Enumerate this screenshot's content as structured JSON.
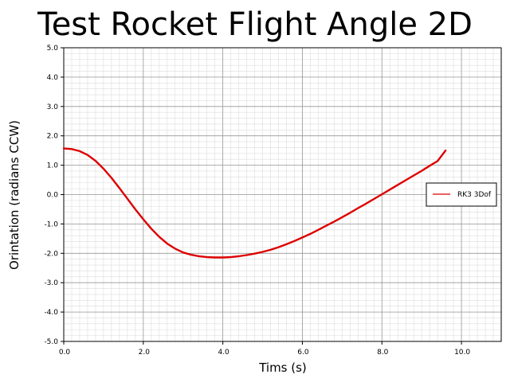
{
  "chart_data": {
    "type": "line",
    "title": "Test Rocket Flight Angle 2D",
    "xlabel": "Tims (s)",
    "ylabel": "Orintation (radians CCW)",
    "xlim": [
      0,
      11
    ],
    "ylim": [
      -5,
      5
    ],
    "x_ticks": [
      0.0,
      2.0,
      4.0,
      6.0,
      8.0,
      10.0
    ],
    "x_tick_labels": [
      "0.0",
      "2.0",
      "4.0",
      "6.0",
      "8.0",
      "10.0"
    ],
    "y_ticks": [
      5.0,
      4.0,
      3.0,
      2.0,
      1.0,
      0.0,
      -1.0,
      -2.0,
      -3.0,
      -4.0,
      -5.0
    ],
    "y_tick_labels": [
      "5.0",
      "4.0",
      "3.0",
      "2.0",
      "1.0",
      "0.0",
      "-1.0",
      "-2.0",
      "-3.0",
      "-4.0",
      "-5.0"
    ],
    "grid": true,
    "legend_position": "right",
    "series": [
      {
        "name": "RK3 3Dof",
        "color": "#dd0000",
        "x": [
          0.0,
          0.2,
          0.4,
          0.6,
          0.8,
          1.0,
          1.2,
          1.4,
          1.6,
          1.8,
          2.0,
          2.2,
          2.4,
          2.6,
          2.8,
          3.0,
          3.2,
          3.4,
          3.6,
          3.8,
          4.0,
          4.2,
          4.4,
          4.6,
          4.8,
          5.0,
          5.2,
          5.4,
          5.6,
          5.8,
          6.0,
          6.2,
          6.4,
          6.6,
          6.8,
          7.0,
          7.2,
          7.4,
          7.6,
          7.8,
          8.0,
          8.2,
          8.4,
          8.6,
          8.8,
          9.0,
          9.2,
          9.4,
          9.6
        ],
        "y": [
          1.57,
          1.55,
          1.48,
          1.35,
          1.15,
          0.88,
          0.57,
          0.22,
          -0.14,
          -0.5,
          -0.84,
          -1.16,
          -1.44,
          -1.67,
          -1.84,
          -1.97,
          -2.05,
          -2.1,
          -2.13,
          -2.14,
          -2.14,
          -2.13,
          -2.1,
          -2.06,
          -2.01,
          -1.95,
          -1.88,
          -1.79,
          -1.69,
          -1.58,
          -1.46,
          -1.34,
          -1.2,
          -1.06,
          -0.92,
          -0.77,
          -0.62,
          -0.46,
          -0.31,
          -0.15,
          0.01,
          0.17,
          0.33,
          0.49,
          0.65,
          0.81,
          0.98,
          1.14,
          1.5
        ]
      }
    ]
  }
}
